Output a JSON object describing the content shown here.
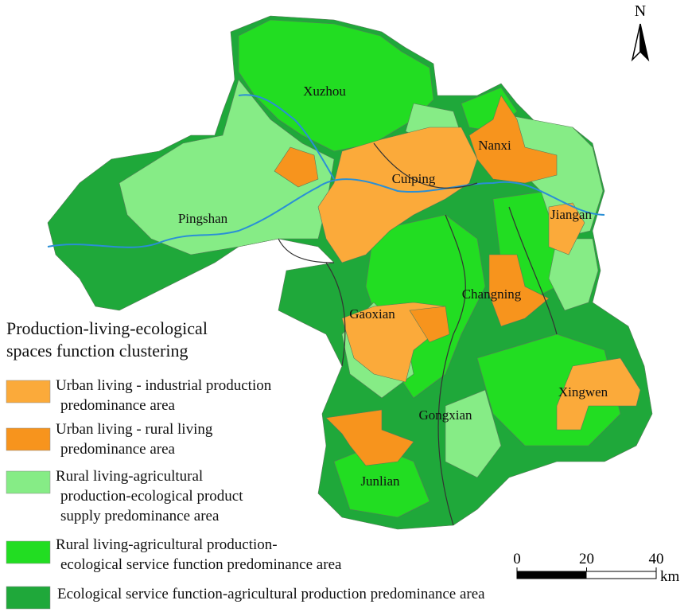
{
  "map": {
    "north": "N",
    "places": [
      "Xuzhou",
      "Cuiping",
      "Nanxi",
      "Pingshan",
      "Jiangan",
      "Changning",
      "Gaoxian",
      "Xingwen",
      "Gongxian",
      "Junlian"
    ],
    "legend": {
      "title": [
        "Production-living-ecological",
        "spaces function clustering"
      ],
      "items": [
        {
          "label": [
            "Urban living - industrial production",
            "predominance area"
          ],
          "color": "#fbaa3a"
        },
        {
          "label": [
            "Urban living - rural living",
            "predominance area"
          ],
          "color": "#f7941d"
        },
        {
          "label": [
            "Rural living-agricultural",
            "production-ecological product",
            "supply predominance area"
          ],
          "color": "#86ec86"
        },
        {
          "label": [
            "Rural living-agricultural production-",
            "ecological service function predominance area"
          ],
          "color": "#22dd22"
        },
        {
          "label": [
            "Ecological service function-agricultural production predominance area"
          ],
          "color": "#1fa83a"
        }
      ]
    },
    "scale_bar": {
      "ticks": [
        0,
        20,
        40
      ],
      "unit": "km"
    }
  }
}
